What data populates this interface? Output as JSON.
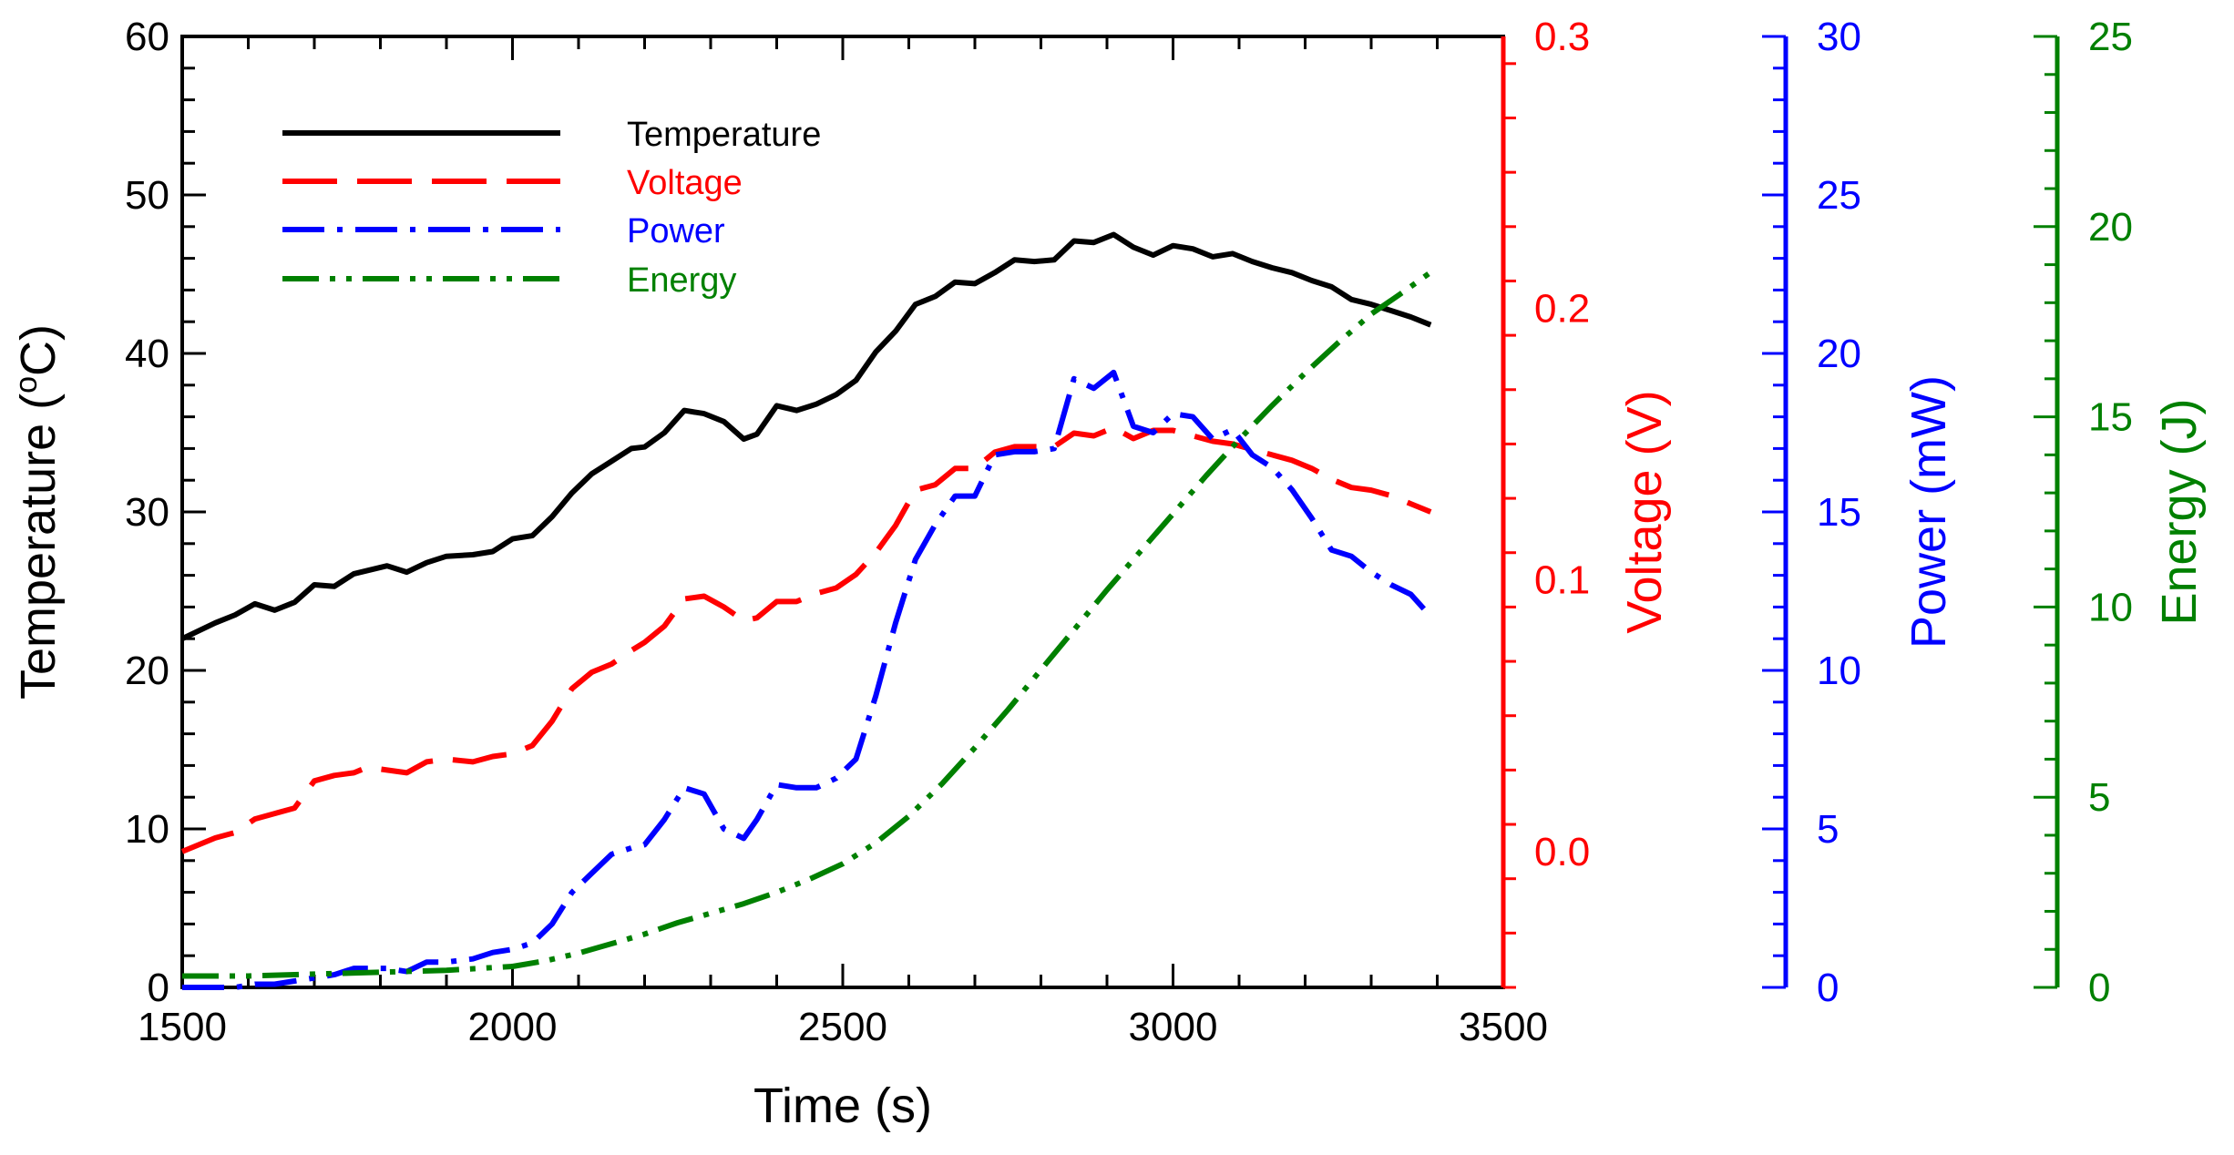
{
  "chart_data": {
    "type": "line",
    "title": "",
    "xlabel": "Time (s)",
    "xlim": [
      1500,
      3500
    ],
    "xticks": [
      1500,
      2000,
      2500,
      3000,
      3500
    ],
    "axes": {
      "temperature": {
        "label_prefix": "Temperature (",
        "label_sup": "o",
        "label_suffix": "C)",
        "color": "#000000",
        "lim": [
          0,
          60
        ],
        "ticks": [
          0,
          10,
          20,
          30,
          40,
          50,
          60
        ],
        "tick_labels": [
          "0",
          "10",
          "20",
          "30",
          "40",
          "50",
          "60"
        ],
        "minor_step": 2
      },
      "voltage": {
        "label": "Voltage (V)",
        "color": "#ff0000",
        "lim": [
          -0.05,
          0.3
        ],
        "ticks": [
          0.0,
          0.1,
          0.2,
          0.3
        ],
        "tick_labels": [
          "0.0",
          "0.1",
          "0.2",
          "0.3"
        ],
        "minor_step": 0.02
      },
      "power": {
        "label": "Power (mW)",
        "color": "#0000ff",
        "lim": [
          0,
          30
        ],
        "ticks": [
          0,
          5,
          10,
          15,
          20,
          25,
          30
        ],
        "tick_labels": [
          "0",
          "5",
          "10",
          "15",
          "20",
          "25",
          "30"
        ],
        "minor_step": 1
      },
      "energy": {
        "label": "Energy (J)",
        "color": "#008000",
        "lim": [
          0,
          25
        ],
        "ticks": [
          0,
          5,
          10,
          15,
          20,
          25
        ],
        "tick_labels": [
          "0",
          "5",
          "10",
          "15",
          "20",
          "25"
        ],
        "minor_step": 1
      }
    },
    "legend": {
      "position": "top-left"
    },
    "series": [
      {
        "name": "Temperature",
        "axis": "temperature",
        "color": "#000000",
        "dash": "solid",
        "x": [
          1500,
          1550,
          1580,
          1610,
          1640,
          1670,
          1700,
          1730,
          1760,
          1780,
          1810,
          1840,
          1870,
          1900,
          1940,
          1970,
          2000,
          2030,
          2060,
          2090,
          2120,
          2150,
          2180,
          2200,
          2230,
          2260,
          2290,
          2320,
          2350,
          2370,
          2400,
          2430,
          2460,
          2490,
          2520,
          2550,
          2580,
          2610,
          2640,
          2670,
          2700,
          2730,
          2760,
          2790,
          2820,
          2850,
          2880,
          2910,
          2940,
          2970,
          3000,
          3030,
          3060,
          3090,
          3120,
          3150,
          3180,
          3210,
          3240,
          3270,
          3300,
          3330,
          3360,
          3390
        ],
        "y": [
          22,
          23,
          23.5,
          24.2,
          23.8,
          24.3,
          25.4,
          25.3,
          26.1,
          26.3,
          26.6,
          26.2,
          26.8,
          27.2,
          27.3,
          27.5,
          28.3,
          28.5,
          29.7,
          31.2,
          32.4,
          33.2,
          34,
          34.1,
          35,
          36.4,
          36.2,
          35.7,
          34.6,
          34.9,
          36.7,
          36.4,
          36.8,
          37.4,
          38.3,
          40.1,
          41.4,
          43.1,
          43.6,
          44.5,
          44.4,
          45.1,
          45.9,
          45.8,
          45.9,
          47.1,
          47,
          47.5,
          46.7,
          46.2,
          46.8,
          46.6,
          46.1,
          46.3,
          45.8,
          45.4,
          45.1,
          44.6,
          44.2,
          43.4,
          43.1,
          42.7,
          42.3,
          41.8
        ]
      },
      {
        "name": "Voltage",
        "axis": "voltage",
        "color": "#ff0000",
        "dash": "long",
        "x": [
          1500,
          1550,
          1580,
          1610,
          1640,
          1670,
          1700,
          1730,
          1760,
          1780,
          1810,
          1840,
          1870,
          1900,
          1940,
          1970,
          2000,
          2030,
          2060,
          2090,
          2120,
          2150,
          2180,
          2200,
          2230,
          2260,
          2290,
          2320,
          2350,
          2370,
          2400,
          2430,
          2460,
          2490,
          2520,
          2550,
          2580,
          2610,
          2640,
          2670,
          2700,
          2730,
          2760,
          2790,
          2820,
          2850,
          2880,
          2910,
          2940,
          2970,
          3000,
          3030,
          3060,
          3090,
          3120,
          3150,
          3180,
          3210,
          3240,
          3270,
          3300,
          3330,
          3360,
          3390
        ],
        "y": [
          0,
          0.005,
          0.007,
          0.012,
          0.014,
          0.016,
          0.026,
          0.028,
          0.029,
          0.031,
          0.03,
          0.029,
          0.033,
          0.034,
          0.033,
          0.035,
          0.036,
          0.039,
          0.048,
          0.06,
          0.066,
          0.069,
          0.074,
          0.077,
          0.083,
          0.093,
          0.094,
          0.09,
          0.085,
          0.086,
          0.092,
          0.092,
          0.095,
          0.097,
          0.102,
          0.11,
          0.12,
          0.133,
          0.135,
          0.141,
          0.141,
          0.147,
          0.149,
          0.149,
          0.149,
          0.154,
          0.153,
          0.156,
          0.152,
          0.155,
          0.155,
          0.153,
          0.151,
          0.15,
          0.148,
          0.146,
          0.144,
          0.141,
          0.137,
          0.134,
          0.133,
          0.131,
          0.128,
          0.125
        ]
      },
      {
        "name": "Power",
        "axis": "power",
        "color": "#0000ff",
        "dash": "dashdot",
        "x": [
          1500,
          1550,
          1580,
          1610,
          1640,
          1670,
          1700,
          1730,
          1760,
          1780,
          1810,
          1840,
          1870,
          1900,
          1940,
          1970,
          2000,
          2030,
          2060,
          2090,
          2120,
          2150,
          2180,
          2200,
          2230,
          2260,
          2290,
          2320,
          2350,
          2370,
          2400,
          2430,
          2460,
          2490,
          2520,
          2550,
          2580,
          2610,
          2640,
          2670,
          2700,
          2730,
          2760,
          2790,
          2820,
          2850,
          2880,
          2910,
          2940,
          2970,
          3000,
          3030,
          3060,
          3090,
          3120,
          3150,
          3180,
          3210,
          3240,
          3270,
          3300,
          3330,
          3360,
          3390
        ],
        "y": [
          0,
          0,
          0,
          0.1,
          0.1,
          0.2,
          0.3,
          0.4,
          0.6,
          0.6,
          0.6,
          0.5,
          0.8,
          0.8,
          0.9,
          1.1,
          1.2,
          1.4,
          2,
          3,
          3.6,
          4.2,
          4.4,
          4.5,
          5.3,
          6.3,
          6.1,
          5,
          4.7,
          5.3,
          6.4,
          6.3,
          6.3,
          6.6,
          7.2,
          9.2,
          11.5,
          13.5,
          14.6,
          15.5,
          15.5,
          16.8,
          16.9,
          16.9,
          17,
          19.2,
          18.9,
          19.4,
          17.7,
          17.5,
          18.1,
          18,
          17.3,
          17.6,
          16.8,
          16.4,
          15.7,
          14.8,
          13.8,
          13.6,
          13.1,
          12.7,
          12.4,
          11.7
        ]
      },
      {
        "name": "Energy",
        "axis": "energy",
        "color": "#008000",
        "dash": "dashdotdot",
        "x": [
          1500,
          1600,
          1700,
          1800,
          1900,
          1950,
          2000,
          2050,
          2100,
          2150,
          2200,
          2250,
          2300,
          2350,
          2400,
          2450,
          2500,
          2550,
          2600,
          2650,
          2700,
          2750,
          2800,
          2850,
          2900,
          2950,
          3000,
          3050,
          3100,
          3150,
          3200,
          3250,
          3300,
          3350,
          3390
        ],
        "y": [
          0.3,
          0.3,
          0.35,
          0.4,
          0.45,
          0.5,
          0.55,
          0.7,
          0.9,
          1.15,
          1.4,
          1.7,
          1.95,
          2.2,
          2.5,
          2.85,
          3.25,
          3.8,
          4.5,
          5.35,
          6.3,
          7.3,
          8.35,
          9.4,
          10.45,
          11.45,
          12.45,
          13.45,
          14.4,
          15.3,
          16.15,
          16.95,
          17.7,
          18.3,
          18.8
        ]
      }
    ]
  }
}
